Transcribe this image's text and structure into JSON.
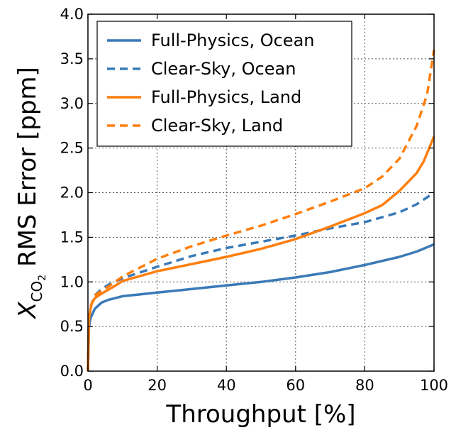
{
  "chart_data": {
    "type": "line",
    "xlabel": "Throughput [%]",
    "ylabel": {
      "prefix": "X",
      "subscript": "CO",
      "sub_subscript": "2",
      "suffix": " RMS Error [ppm]"
    },
    "xlim": [
      0,
      100
    ],
    "ylim": [
      0.0,
      4.0
    ],
    "xticks": [
      "0",
      "20",
      "40",
      "60",
      "80",
      "100"
    ],
    "yticks": [
      "0.0",
      "0.5",
      "1.0",
      "1.5",
      "2.0",
      "2.5",
      "3.0",
      "3.5",
      "4.0"
    ],
    "grid": true,
    "legend_position": "top-left",
    "series": [
      {
        "name": "Full-Physics, Ocean",
        "color": "#3a7ab8",
        "style": "solid",
        "points": [
          [
            0,
            0.0
          ],
          [
            0.3,
            0.5
          ],
          [
            0.8,
            0.6
          ],
          [
            2,
            0.7
          ],
          [
            4,
            0.77
          ],
          [
            6,
            0.8
          ],
          [
            10,
            0.84
          ],
          [
            15,
            0.86
          ],
          [
            20,
            0.88
          ],
          [
            30,
            0.92
          ],
          [
            40,
            0.96
          ],
          [
            50,
            1.0
          ],
          [
            60,
            1.05
          ],
          [
            70,
            1.11
          ],
          [
            80,
            1.19
          ],
          [
            90,
            1.28
          ],
          [
            95,
            1.34
          ],
          [
            100,
            1.42
          ]
        ]
      },
      {
        "name": "Clear-Sky, Ocean",
        "color": "#3a7ab8",
        "style": "dashed",
        "points": [
          [
            0,
            0.0
          ],
          [
            0.3,
            0.6
          ],
          [
            1,
            0.75
          ],
          [
            2,
            0.85
          ],
          [
            4,
            0.92
          ],
          [
            6,
            0.97
          ],
          [
            10,
            1.04
          ],
          [
            20,
            1.17
          ],
          [
            30,
            1.29
          ],
          [
            40,
            1.38
          ],
          [
            50,
            1.45
          ],
          [
            60,
            1.52
          ],
          [
            70,
            1.6
          ],
          [
            80,
            1.67
          ],
          [
            90,
            1.78
          ],
          [
            95,
            1.87
          ],
          [
            100,
            2.0
          ]
        ]
      },
      {
        "name": "Full-Physics, Land",
        "color": "#ff7f0e",
        "style": "solid",
        "points": [
          [
            0,
            0.0
          ],
          [
            0.3,
            0.6
          ],
          [
            1,
            0.75
          ],
          [
            2,
            0.82
          ],
          [
            4,
            0.87
          ],
          [
            8,
            0.96
          ],
          [
            10,
            1.01
          ],
          [
            20,
            1.12
          ],
          [
            30,
            1.2
          ],
          [
            40,
            1.28
          ],
          [
            50,
            1.37
          ],
          [
            60,
            1.48
          ],
          [
            70,
            1.62
          ],
          [
            80,
            1.77
          ],
          [
            85,
            1.86
          ],
          [
            90,
            2.02
          ],
          [
            95,
            2.22
          ],
          [
            97,
            2.35
          ],
          [
            100,
            2.63
          ]
        ]
      },
      {
        "name": "Clear-Sky, Land",
        "color": "#ff7f0e",
        "style": "dashed",
        "points": [
          [
            0,
            0.0
          ],
          [
            0.3,
            0.6
          ],
          [
            1,
            0.75
          ],
          [
            2,
            0.85
          ],
          [
            4,
            0.9
          ],
          [
            6,
            0.95
          ],
          [
            10,
            1.06
          ],
          [
            20,
            1.26
          ],
          [
            30,
            1.4
          ],
          [
            40,
            1.52
          ],
          [
            50,
            1.63
          ],
          [
            60,
            1.76
          ],
          [
            70,
            1.9
          ],
          [
            80,
            2.05
          ],
          [
            85,
            2.18
          ],
          [
            90,
            2.38
          ],
          [
            95,
            2.75
          ],
          [
            98,
            3.1
          ],
          [
            100,
            3.6
          ]
        ]
      }
    ]
  }
}
